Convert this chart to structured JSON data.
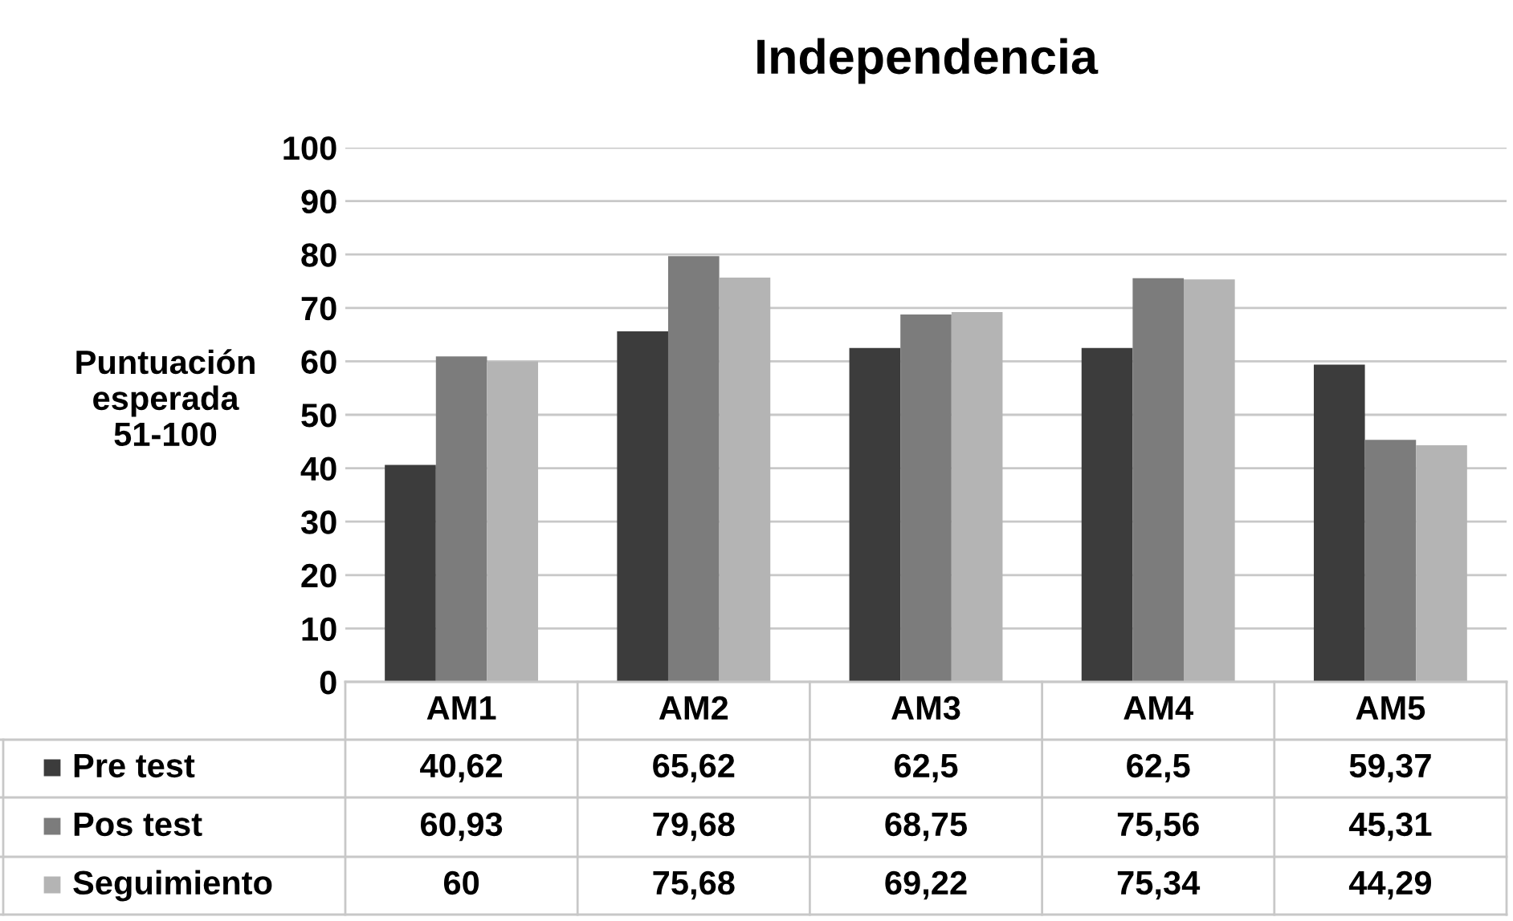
{
  "chart_data": {
    "type": "bar",
    "title": "Independencia",
    "ylabel": "Puntuación\nesperada\n51-100",
    "categories": [
      "AM1",
      "AM2",
      "AM3",
      "AM4",
      "AM5"
    ],
    "series": [
      {
        "name": "Pre test",
        "color": "#3c3c3c",
        "values": [
          40.62,
          65.62,
          62.5,
          62.5,
          59.37
        ],
        "value_labels": [
          "40,62",
          "65,62",
          "62,5",
          "62,5",
          "59,37"
        ]
      },
      {
        "name": "Pos test",
        "color": "#7c7c7c",
        "values": [
          60.93,
          79.68,
          68.75,
          75.56,
          45.31
        ],
        "value_labels": [
          "60,93",
          "79,68",
          "68,75",
          "75,56",
          "45,31"
        ]
      },
      {
        "name": "Seguimiento",
        "color": "#b4b4b4",
        "values": [
          60,
          75.68,
          69.22,
          75.34,
          44.29
        ],
        "value_labels": [
          "60",
          "75,68",
          "69,22",
          "75,34",
          "44,29"
        ]
      }
    ],
    "ylim": [
      0,
      100
    ],
    "yticks": [
      0,
      10,
      20,
      30,
      40,
      50,
      60,
      70,
      80,
      90,
      100
    ],
    "grid": "y",
    "legend": "bottom"
  }
}
